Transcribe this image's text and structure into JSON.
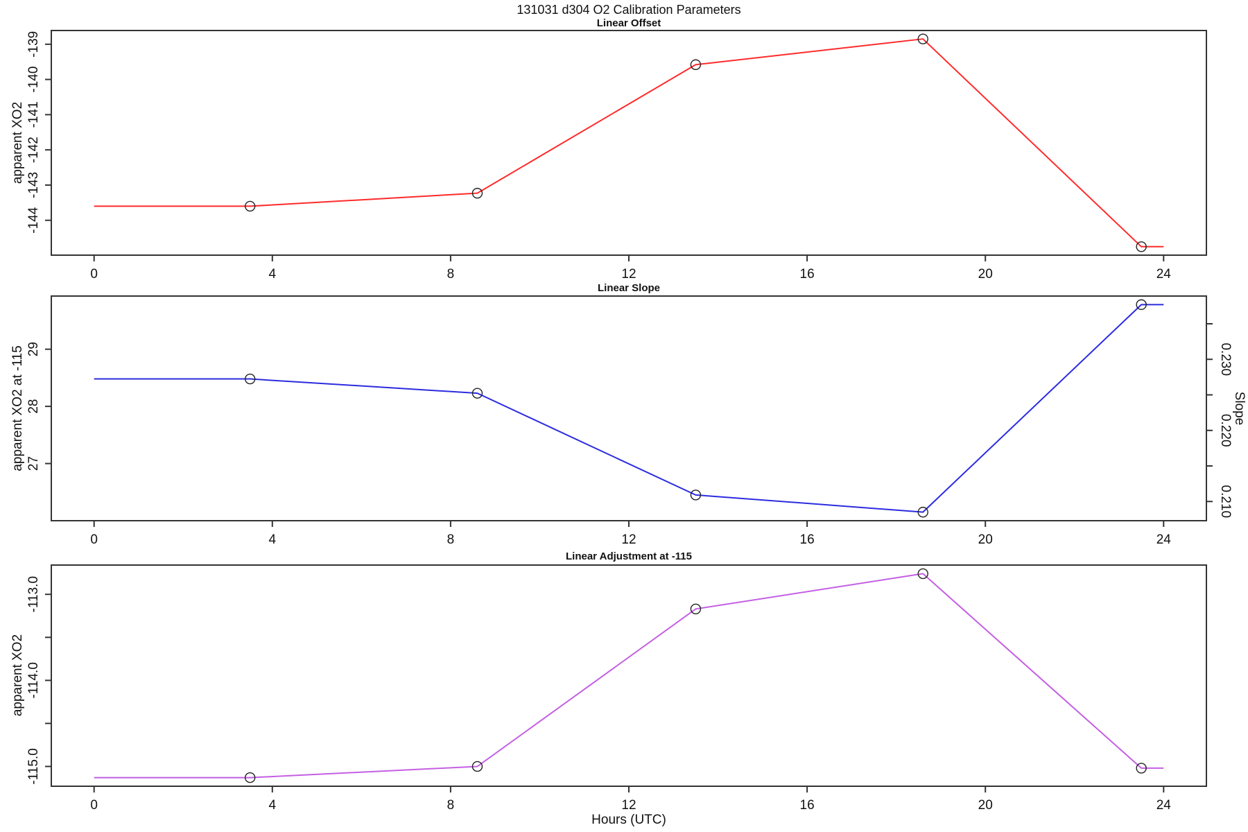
{
  "figure_title": "131031   d304   O2 Calibration Parameters",
  "xlabel": "Hours (UTC)",
  "xlim": [
    -0.96,
    24.96
  ],
  "x_ticks": [
    0,
    4,
    8,
    12,
    16,
    20,
    24
  ],
  "x_tick_labels": [
    "0",
    "4",
    "8",
    "12",
    "16",
    "20",
    "24"
  ],
  "axis_color": "#333333",
  "marker_color": "#222222",
  "chart_data": [
    {
      "type": "line",
      "title": "Linear Offset",
      "ylabel": "apparent XO2",
      "color": "#ff2a2a",
      "x": [
        0,
        3.5,
        8.6,
        13.5,
        18.6,
        23.5,
        24
      ],
      "y": [
        -143.6,
        -143.6,
        -143.23,
        -139.58,
        -138.85,
        -144.75,
        -144.75
      ],
      "markers_at": [
        1,
        2,
        3,
        4,
        5
      ],
      "ylim": [
        -144.99,
        -138.61
      ],
      "yticks": [
        -144,
        -143,
        -142,
        -141,
        -140,
        -139
      ],
      "ytick_labels": [
        "-144",
        "-143",
        "-142",
        "-141",
        "-140",
        "-139"
      ]
    },
    {
      "type": "line",
      "title": "Linear Slope",
      "ylabel": "apparent XO2 at -115",
      "color": "#2b2be0",
      "x": [
        0,
        3.5,
        8.6,
        13.5,
        18.6,
        23.5,
        24
      ],
      "y": [
        28.48,
        28.48,
        28.23,
        26.45,
        26.15,
        29.78,
        29.78
      ],
      "markers_at": [
        1,
        2,
        3,
        4,
        5
      ],
      "ylim": [
        26.0,
        29.93
      ],
      "yticks": [
        27,
        28,
        29
      ],
      "ytick_labels": [
        "27",
        "28",
        "29"
      ],
      "right_axis": {
        "label": "Slope",
        "ylim": [
          0.2073,
          0.2389
        ],
        "ticks": [
          0.21,
          0.215,
          0.22,
          0.225,
          0.23,
          0.235
        ],
        "tick_labels": [
          "0.210",
          "",
          "0.220",
          "",
          "0.230",
          ""
        ],
        "marker_values_approx": [
          0.227,
          0.225,
          0.211,
          0.209,
          0.238
        ]
      }
    },
    {
      "type": "line",
      "title": "Linear Adjustment at -115",
      "ylabel": "apparent XO2",
      "color": "#c45fe3",
      "x": [
        0,
        3.5,
        8.6,
        13.5,
        18.6,
        23.5,
        24
      ],
      "y": [
        -115.13,
        -115.13,
        -115.0,
        -113.17,
        -112.76,
        -115.02,
        -115.02
      ],
      "markers_at": [
        1,
        2,
        3,
        4,
        5
      ],
      "ylim": [
        -115.23,
        -112.66
      ],
      "yticks": [
        -115,
        -114.5,
        -114,
        -113.5,
        -113
      ],
      "ytick_labels": [
        "-115.0",
        "",
        "-114.0",
        "",
        "-113.0"
      ]
    }
  ]
}
